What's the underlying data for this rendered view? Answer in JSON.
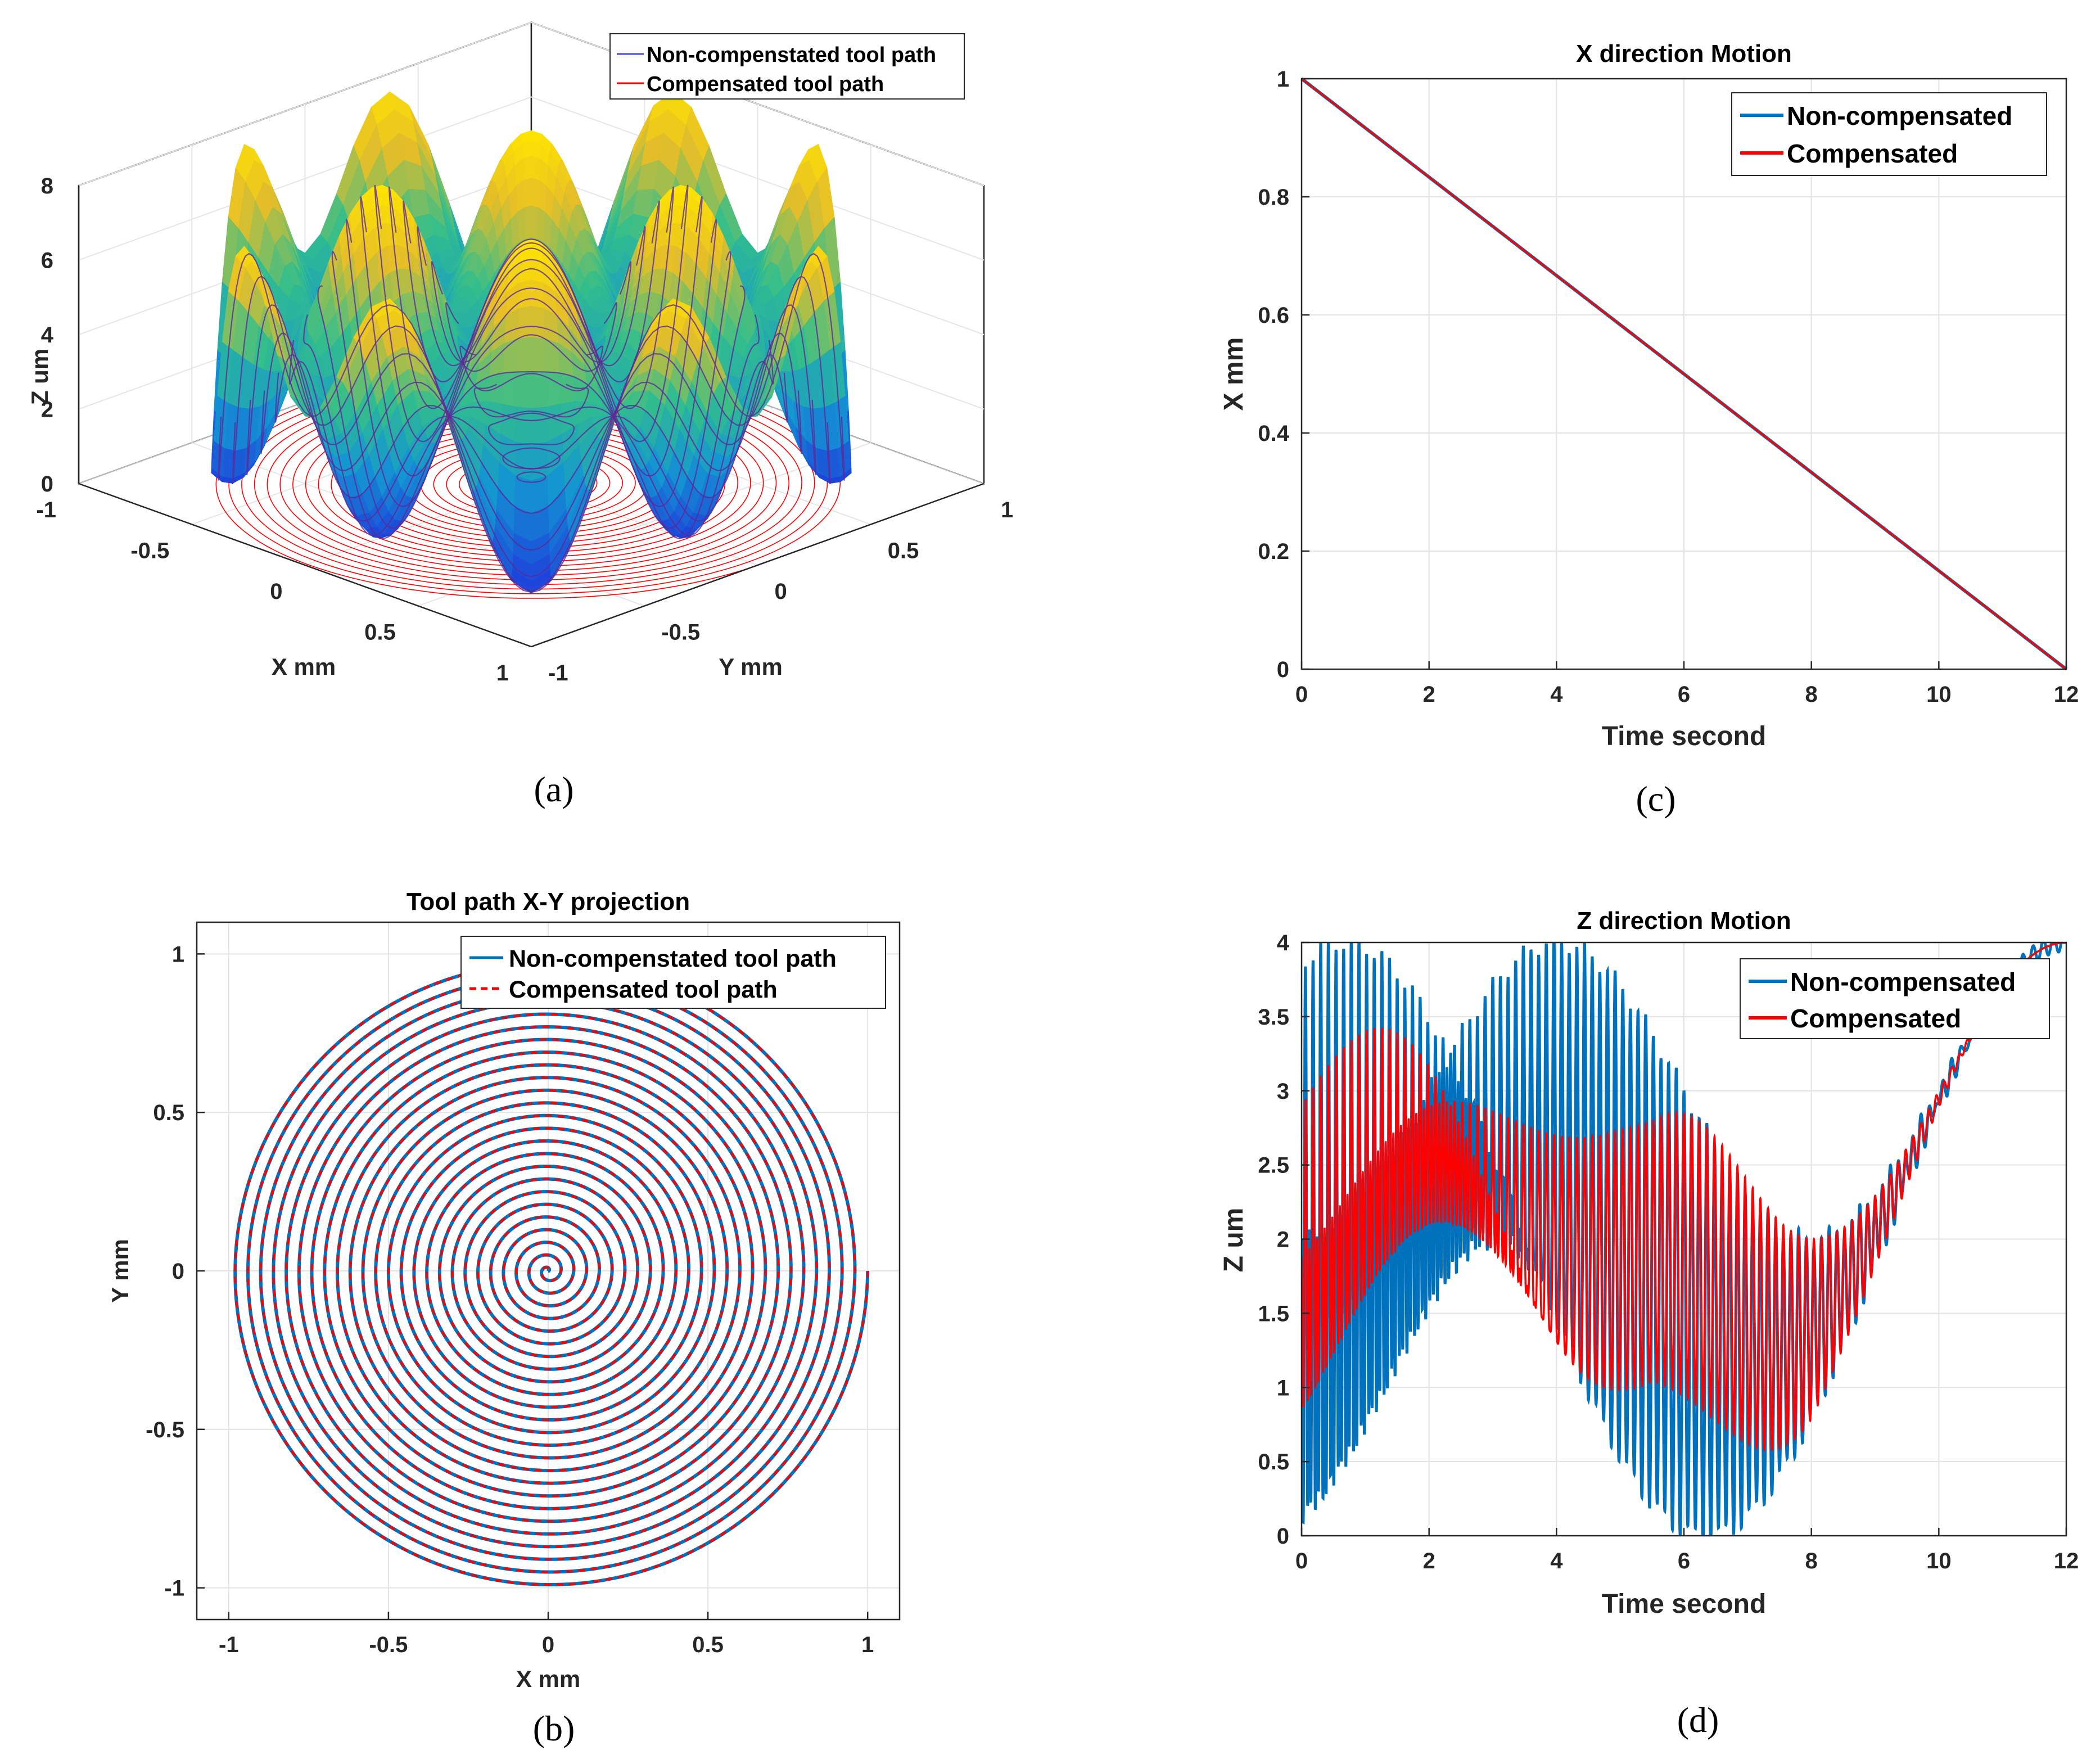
{
  "colors": {
    "noncomp": "#0072BD",
    "comp": "#FF0000",
    "axis": "#262626",
    "grid": "#e3e3e3",
    "surface_low": "#1a3fd6",
    "surface_mid": "#20b2aa",
    "surface_high": "#ffd700"
  },
  "captions": {
    "a": "(a)",
    "b": "(b)",
    "c": "(c)",
    "d": "(d)"
  },
  "chart_data": [
    {
      "id": "a",
      "type": "surface3d",
      "title": "",
      "xlabel": "X mm",
      "ylabel": "Y mm",
      "zlabel": "Z um",
      "xlim": [
        -1,
        1
      ],
      "ylim": [
        -1,
        1
      ],
      "zlim": [
        0,
        8
      ],
      "xticks": [
        "-1",
        "-0.5",
        "0",
        "0.5",
        "1"
      ],
      "yticks": [
        "-1",
        "-0.5",
        "0",
        "0.5",
        "1"
      ],
      "zticks": [
        "0",
        "2",
        "4",
        "6",
        "8"
      ],
      "surface": "z = 4 + 2cos(3*pi*x) + 2cos(3*pi*y) over unit disk",
      "series": [
        {
          "name": "Non-compenstated tool path",
          "style": "solid",
          "color": "#4a4ad0"
        },
        {
          "name": "Compensated tool path",
          "style": "solid",
          "color": "#FF0000"
        }
      ],
      "legend": "top-right"
    },
    {
      "id": "b",
      "type": "line",
      "title": "Tool path X-Y projection",
      "xlabel": "X mm",
      "ylabel": "Y mm",
      "xlim": [
        -1.1,
        1.1
      ],
      "ylim": [
        -1.1,
        1.1
      ],
      "xticks": [
        -1,
        -0.5,
        0,
        0.5,
        1
      ],
      "xtick_labels": [
        "-1",
        "-0.5",
        "0",
        "0.5",
        "1"
      ],
      "yticks": [
        -1,
        -0.5,
        0,
        0.5,
        1
      ],
      "ytick_labels": [
        "-1",
        "-0.5",
        "0",
        "0.5",
        "1"
      ],
      "spiral": {
        "turns": 25,
        "radius": 1,
        "start_angle_deg": 0
      },
      "series": [
        {
          "name": "Non-compenstated tool path",
          "style": "solid",
          "color": "#0072BD"
        },
        {
          "name": "Compensated tool path",
          "style": "dashed",
          "color": "#FF0000"
        }
      ],
      "legend": "top-right"
    },
    {
      "id": "c",
      "type": "line",
      "title": "X direction Motion",
      "xlabel": "Time second",
      "ylabel": "X mm",
      "xlim": [
        0,
        12
      ],
      "ylim": [
        0,
        1
      ],
      "xticks": [
        0,
        2,
        4,
        6,
        8,
        10,
        12
      ],
      "xtick_labels": [
        "0",
        "2",
        "4",
        "6",
        "8",
        "10",
        "12"
      ],
      "yticks": [
        0,
        0.2,
        0.4,
        0.6,
        0.8,
        1
      ],
      "ytick_labels": [
        "0",
        "0.2",
        "0.4",
        "0.6",
        "0.8",
        "1"
      ],
      "series": [
        {
          "name": "Non-compensated",
          "color": "#0072BD",
          "x": [
            0,
            12
          ],
          "y": [
            1,
            0
          ]
        },
        {
          "name": "Compensated",
          "color": "#FF0000",
          "x": [
            0,
            12
          ],
          "y": [
            1,
            0
          ]
        }
      ],
      "legend": "top-right"
    },
    {
      "id": "d",
      "type": "line",
      "title": "Z direction Motion",
      "xlabel": "Time second",
      "ylabel": "Z um",
      "xlim": [
        0,
        12
      ],
      "ylim": [
        0,
        4
      ],
      "xticks": [
        0,
        2,
        4,
        6,
        8,
        10,
        12
      ],
      "xtick_labels": [
        "0",
        "2",
        "4",
        "6",
        "8",
        "10",
        "12"
      ],
      "yticks": [
        0,
        0.5,
        1,
        1.5,
        2,
        2.5,
        3,
        3.5,
        4
      ],
      "ytick_labels": [
        "0",
        "0.5",
        "1",
        "1.5",
        "2",
        "2.5",
        "3",
        "3.5",
        "4"
      ],
      "model": "z(t) = 2 + r(t)cos(3*pi*x)+... with r = 1 - t/12, 25 spiral turns",
      "series": [
        {
          "name": "Non-compensated",
          "color": "#0072BD"
        },
        {
          "name": "Compensated",
          "color": "#FF0000"
        }
      ],
      "legend": "top-right"
    }
  ]
}
